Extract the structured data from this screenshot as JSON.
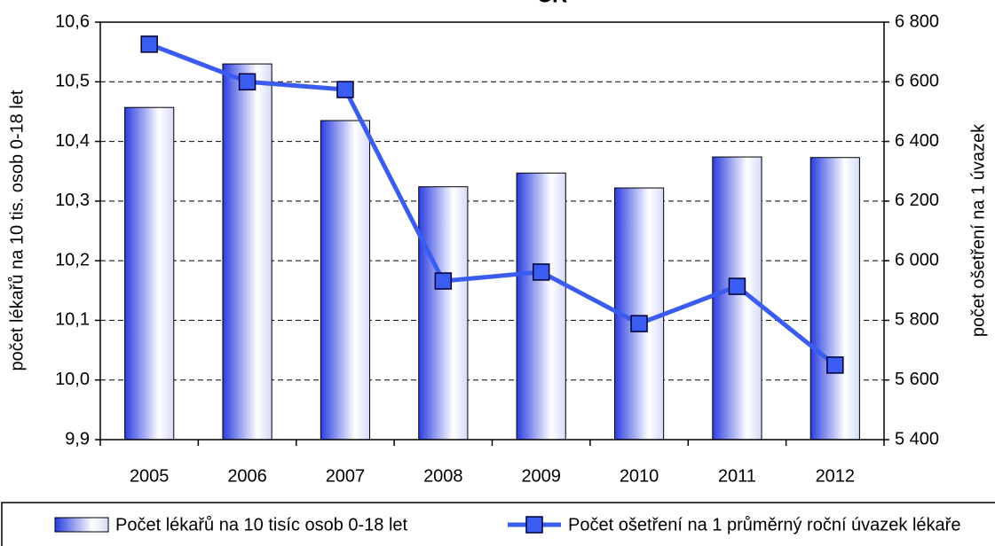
{
  "chart_data": {
    "type": "bar_line",
    "title": "ČR",
    "categories": [
      "2005",
      "2006",
      "2007",
      "2008",
      "2009",
      "2010",
      "2011",
      "2012"
    ],
    "series": [
      {
        "name": "Počet lékařů na 10 tisíc osob 0-18 let",
        "type": "bar",
        "color": "#2a3de0",
        "values": [
          10.457,
          10.53,
          10.435,
          10.324,
          10.347,
          10.322,
          10.374,
          10.373
        ]
      },
      {
        "name": "Počet ošetření na 1 průměrný roční úvazek lékaře",
        "type": "line",
        "axis": "y2",
        "color": "#3b5cf0",
        "values": [
          6726,
          6600,
          6574,
          5932,
          5962,
          5789,
          5914,
          5650
        ]
      }
    ],
    "ylabel": "počet lékařů na 10 tis. osob 0-18 let",
    "y2label": "počet ošetření na 1 úvazek",
    "ylim": [
      9.9,
      10.6
    ],
    "yticks": [
      {
        "value": 9.9,
        "label": "9,9"
      },
      {
        "value": 10.0,
        "label": "10,0"
      },
      {
        "value": 10.1,
        "label": "10,1"
      },
      {
        "value": 10.2,
        "label": "10,2"
      },
      {
        "value": 10.3,
        "label": "10,3"
      },
      {
        "value": 10.4,
        "label": "10,4"
      },
      {
        "value": 10.5,
        "label": "10,5"
      },
      {
        "value": 10.6,
        "label": "10,6"
      }
    ],
    "y2lim": [
      5400,
      6800
    ],
    "y2ticks": [
      {
        "value": 5400,
        "label": "5 400"
      },
      {
        "value": 5600,
        "label": "5 600"
      },
      {
        "value": 5800,
        "label": "5 800"
      },
      {
        "value": 6000,
        "label": "6 000"
      },
      {
        "value": 6200,
        "label": "6 200"
      },
      {
        "value": 6400,
        "label": "6 400"
      },
      {
        "value": 6600,
        "label": "6 600"
      },
      {
        "value": 6800,
        "label": "6 800"
      }
    ],
    "grid": true,
    "legend": "bottom"
  }
}
